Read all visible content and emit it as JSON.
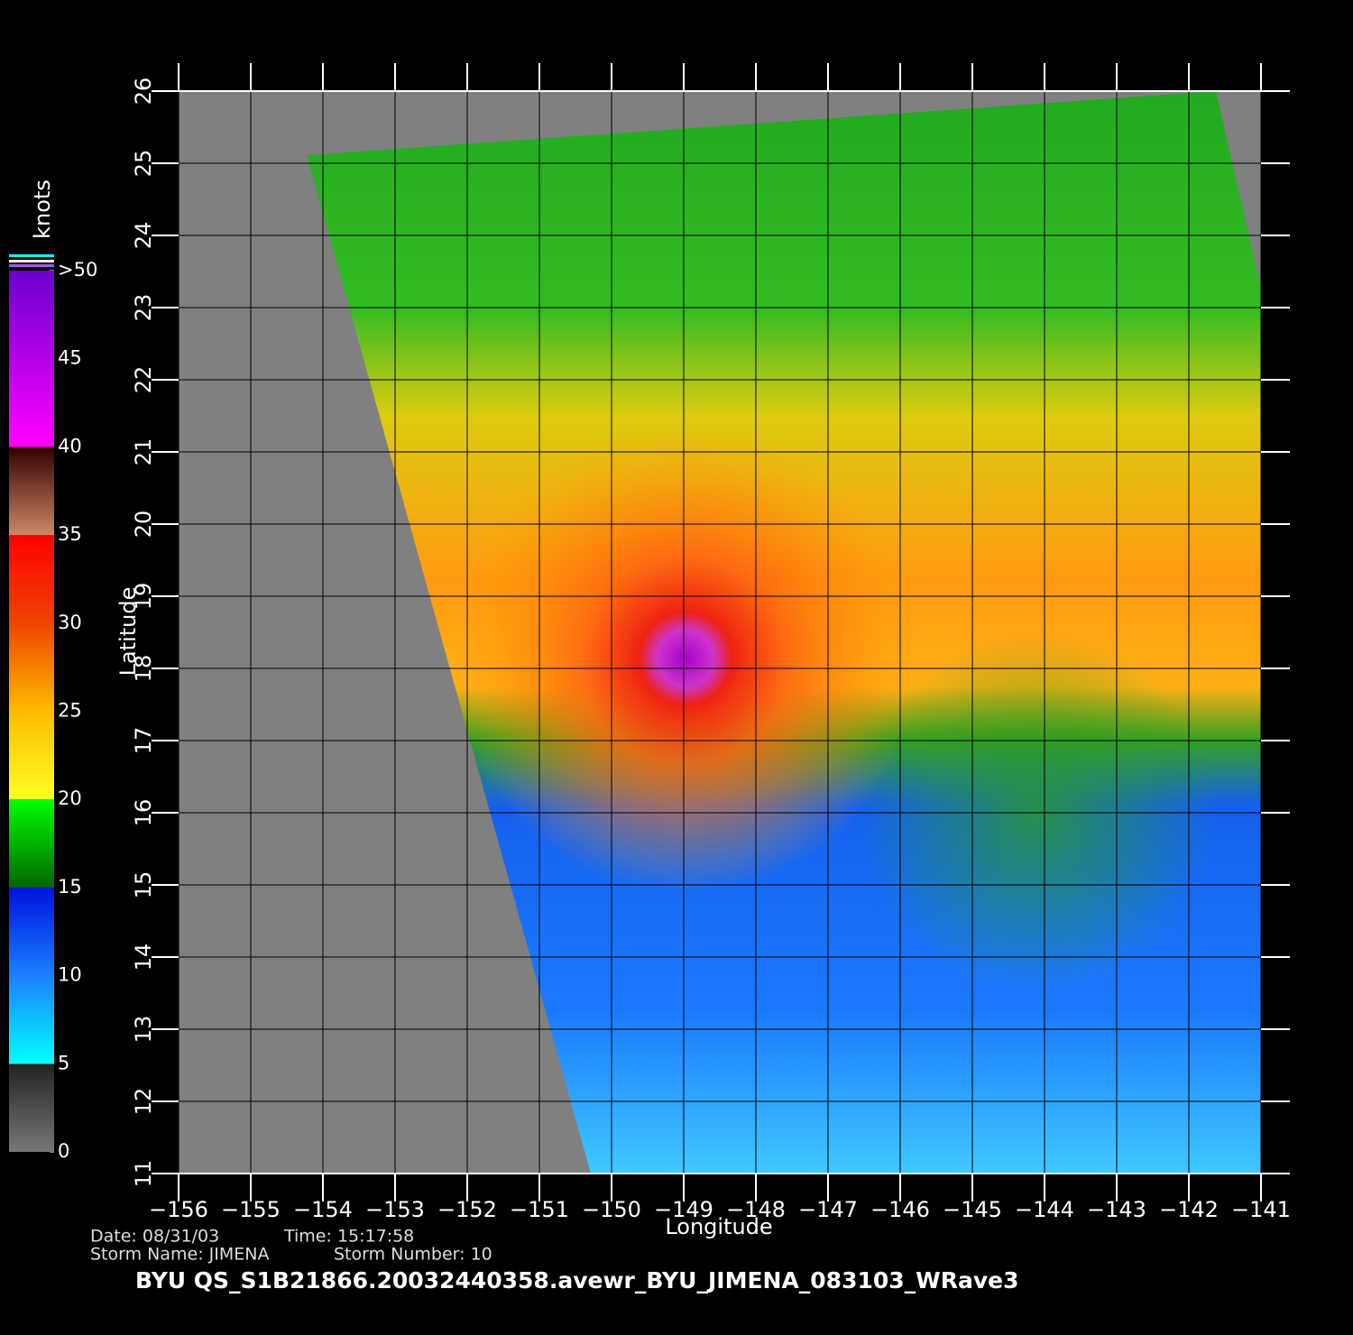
{
  "map": {
    "title": "BYU  QS_S1B21866.20032440358.avewr_BYU_JIMENA_083103_WRave3",
    "date": "Date: 08/31/03",
    "time": "Time: 15:17:58",
    "storm_name": "Storm  Name: JIMENA",
    "storm_number": "Storm  Number: 10",
    "xlabel": "Longitude",
    "ylabel": "Latitude",
    "xlim": [
      -156,
      -141
    ],
    "ylim": [
      11,
      26
    ],
    "xticks": [
      -156,
      -155,
      -154,
      -153,
      -152,
      -151,
      -150,
      -149,
      -148,
      -147,
      -146,
      -145,
      -144,
      -143,
      -142,
      -141
    ],
    "yticks": [
      11,
      12,
      13,
      14,
      15,
      16,
      17,
      18,
      19,
      20,
      21,
      22,
      23,
      24,
      25,
      26
    ],
    "grid": true,
    "colorbar": {
      "label": "knots",
      "lim": [
        0,
        50
      ],
      "ticks": [
        0,
        5,
        10,
        15,
        20,
        25,
        30,
        35,
        40,
        45,
        {
          "value": 50,
          "label": ">50"
        }
      ]
    }
  }
}
